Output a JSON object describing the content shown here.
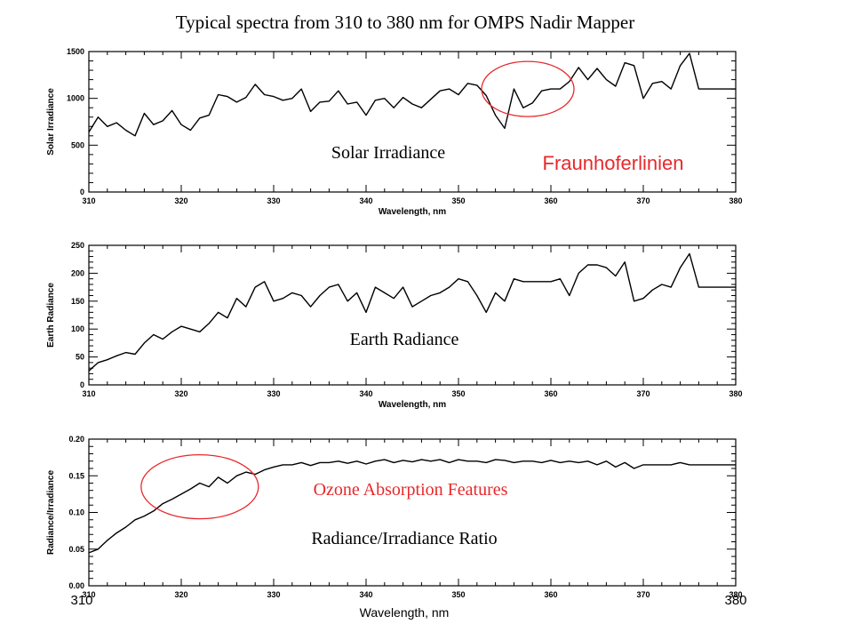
{
  "title": "Typical spectra from 310 to 380 nm for OMPS Nadir Mapper",
  "footer": {
    "xmin_label": "310",
    "xmax_label": "380",
    "xlabel": "Wavelength, nm"
  },
  "colors": {
    "line": "#000000",
    "annotation": "#e8282b"
  },
  "chart_data": [
    {
      "type": "line",
      "ylabel": "Solar Irradiance",
      "xlabel": "Wavelength, nm",
      "inset_label": "Solar Irradiance",
      "annotation": "Fraunhoferlinien",
      "annotation_ellipse_center": [
        357.5,
        1100
      ],
      "xlim": [
        310,
        380
      ],
      "ylim": [
        0,
        1500
      ],
      "xticks": [
        310,
        320,
        330,
        340,
        350,
        360,
        370,
        380
      ],
      "yticks": [
        0,
        500,
        1000,
        1500
      ],
      "x": [
        310,
        311,
        312,
        313,
        314,
        315,
        316,
        317,
        318,
        319,
        320,
        321,
        322,
        323,
        324,
        325,
        326,
        327,
        328,
        329,
        330,
        331,
        332,
        333,
        334,
        335,
        336,
        337,
        338,
        339,
        340,
        341,
        342,
        343,
        344,
        345,
        346,
        347,
        348,
        349,
        350,
        351,
        352,
        353,
        354,
        355,
        356,
        357,
        358,
        359,
        360,
        361,
        362,
        363,
        364,
        365,
        366,
        367,
        368,
        369,
        370,
        371,
        372,
        373,
        374,
        375,
        376,
        377,
        378,
        379,
        380
      ],
      "y": [
        640,
        800,
        700,
        740,
        660,
        600,
        840,
        720,
        760,
        870,
        720,
        660,
        790,
        820,
        1040,
        1020,
        960,
        1010,
        1150,
        1040,
        1020,
        980,
        1000,
        1100,
        860,
        960,
        970,
        1080,
        940,
        960,
        820,
        980,
        1000,
        900,
        1010,
        940,
        900,
        990,
        1080,
        1100,
        1040,
        1160,
        1140,
        1030,
        820,
        680,
        1100,
        900,
        950,
        1080,
        1100,
        1100,
        1180,
        1330,
        1200,
        1320,
        1200,
        1130,
        1380,
        1350,
        1000,
        1160,
        1180,
        1100,
        1350,
        1480,
        1100,
        1100,
        1100,
        1100,
        1100
      ]
    },
    {
      "type": "line",
      "ylabel": "Earth Radiance",
      "xlabel": "Wavelength, nm",
      "inset_label": "Earth Radiance",
      "xlim": [
        310,
        380
      ],
      "ylim": [
        0,
        250
      ],
      "xticks": [
        310,
        320,
        330,
        340,
        350,
        360,
        370,
        380
      ],
      "yticks": [
        0,
        50,
        100,
        150,
        200,
        250
      ],
      "x": [
        310,
        311,
        312,
        313,
        314,
        315,
        316,
        317,
        318,
        319,
        320,
        321,
        322,
        323,
        324,
        325,
        326,
        327,
        328,
        329,
        330,
        331,
        332,
        333,
        334,
        335,
        336,
        337,
        338,
        339,
        340,
        341,
        342,
        343,
        344,
        345,
        346,
        347,
        348,
        349,
        350,
        351,
        352,
        353,
        354,
        355,
        356,
        357,
        358,
        359,
        360,
        361,
        362,
        363,
        364,
        365,
        366,
        367,
        368,
        369,
        370,
        371,
        372,
        373,
        374,
        375,
        376,
        377,
        378,
        379,
        380
      ],
      "y": [
        25,
        40,
        45,
        52,
        58,
        55,
        75,
        90,
        82,
        95,
        105,
        100,
        95,
        110,
        130,
        120,
        155,
        140,
        175,
        185,
        150,
        155,
        165,
        160,
        140,
        160,
        175,
        180,
        150,
        165,
        130,
        175,
        165,
        155,
        175,
        140,
        150,
        160,
        165,
        175,
        190,
        185,
        160,
        130,
        165,
        150,
        190,
        185,
        185,
        185,
        185,
        190,
        160,
        200,
        215,
        215,
        210,
        195,
        220,
        150,
        155,
        170,
        180,
        175,
        210,
        235,
        175,
        175,
        175,
        175,
        175
      ]
    },
    {
      "type": "line",
      "ylabel": "Radiance/Irradiance",
      "xlabel": "",
      "inset_label": "Radiance/Irradiance Ratio",
      "annotation": "Ozone Absorption Features",
      "annotation_ellipse_center": [
        322,
        0.135
      ],
      "xlim": [
        310,
        380
      ],
      "ylim": [
        0,
        0.2
      ],
      "xticks": [
        310,
        320,
        330,
        340,
        350,
        360,
        370,
        380
      ],
      "yticks": [
        0,
        0.05,
        0.1,
        0.15,
        0.2
      ],
      "x": [
        310,
        311,
        312,
        313,
        314,
        315,
        316,
        317,
        318,
        319,
        320,
        321,
        322,
        323,
        324,
        325,
        326,
        327,
        328,
        329,
        330,
        331,
        332,
        333,
        334,
        335,
        336,
        337,
        338,
        339,
        340,
        341,
        342,
        343,
        344,
        345,
        346,
        347,
        348,
        349,
        350,
        351,
        352,
        353,
        354,
        355,
        356,
        357,
        358,
        359,
        360,
        361,
        362,
        363,
        364,
        365,
        366,
        367,
        368,
        369,
        370,
        371,
        372,
        373,
        374,
        375,
        376,
        377,
        378,
        379,
        380
      ],
      "y": [
        0.045,
        0.05,
        0.062,
        0.072,
        0.08,
        0.09,
        0.095,
        0.102,
        0.112,
        0.118,
        0.125,
        0.132,
        0.14,
        0.135,
        0.148,
        0.14,
        0.15,
        0.155,
        0.152,
        0.158,
        0.162,
        0.165,
        0.165,
        0.168,
        0.164,
        0.168,
        0.168,
        0.17,
        0.167,
        0.17,
        0.166,
        0.17,
        0.172,
        0.168,
        0.171,
        0.169,
        0.172,
        0.17,
        0.172,
        0.168,
        0.172,
        0.17,
        0.17,
        0.168,
        0.172,
        0.171,
        0.168,
        0.17,
        0.17,
        0.168,
        0.171,
        0.168,
        0.17,
        0.168,
        0.17,
        0.165,
        0.17,
        0.162,
        0.168,
        0.16,
        0.165,
        0.165,
        0.165,
        0.165,
        0.168,
        0.165,
        0.165,
        0.165,
        0.165,
        0.165,
        0.165
      ]
    }
  ]
}
